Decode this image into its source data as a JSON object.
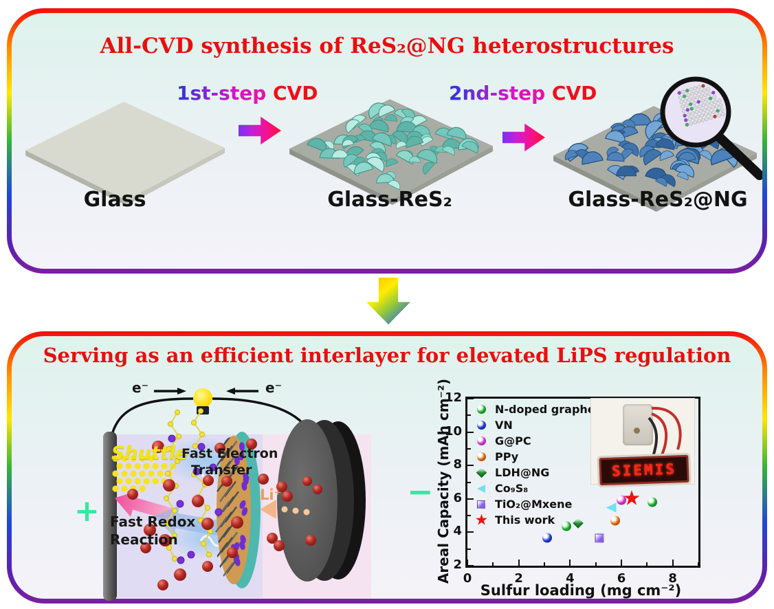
{
  "figure": {
    "top_panel": {
      "title": "All-CVD synthesis of ReS₂@NG heterostructures",
      "step1": {
        "name": "1st-step",
        "method": "CVD"
      },
      "step2": {
        "name": "2nd-step",
        "method": "CVD"
      },
      "labels": {
        "glass": "Glass",
        "glass_res2": "Glass-ReS₂",
        "glass_res2_ng": "Glass-ReS₂@NG"
      }
    },
    "bottom_panel": {
      "title": "Serving as an efficient interlayer for elevated LiPS regulation",
      "battery": {
        "electron_left": "e⁻",
        "electron_right": "e⁻",
        "positive_terminal": "+",
        "negative_terminal": "−",
        "shuttle": "Shuttle",
        "fast_electron_line1": "Fast Electron",
        "fast_electron_line2": "Transfer",
        "fast_redox_line1": "Fast Redox",
        "fast_redox_line2": "Reaction",
        "lithium_ion": "Li⁺"
      },
      "inset_photo": {
        "display_text": "SIEMIS"
      }
    }
  },
  "chart_data": {
    "type": "scatter",
    "title": "",
    "xlabel": "Sulfur loading (mg cm⁻²)",
    "ylabel": "Areal Capacity (mAh cm⁻²)",
    "xlim": [
      0,
      9
    ],
    "ylim": [
      2,
      12
    ],
    "xticks": [
      0,
      2,
      4,
      6,
      8
    ],
    "yticks": [
      2,
      4,
      6,
      8,
      10,
      12
    ],
    "grid": false,
    "legend_position": "upper-left",
    "series": [
      {
        "name": "N-doped graphene",
        "marker": "circle",
        "color": "#22c832",
        "points": [
          [
            3.85,
            4.3
          ],
          [
            7.2,
            5.75
          ]
        ]
      },
      {
        "name": "VN",
        "marker": "circle",
        "color": "#2244ee",
        "points": [
          [
            3.1,
            3.6
          ]
        ]
      },
      {
        "name": "G@PC",
        "marker": "circle",
        "color": "#ee44ee",
        "points": [
          [
            6.0,
            5.85
          ]
        ]
      },
      {
        "name": "PPy",
        "marker": "circle",
        "color": "#ff7f19",
        "points": [
          [
            5.75,
            4.65
          ]
        ]
      },
      {
        "name": "LDH@NG",
        "marker": "diamond",
        "color": "#1e8f2e",
        "points": [
          [
            4.3,
            4.55
          ]
        ]
      },
      {
        "name": "Co₉S₈",
        "marker": "triangle-left",
        "color": "#6fe3ef",
        "points": [
          [
            5.6,
            5.4
          ]
        ]
      },
      {
        "name": "TiO₂@Mxene",
        "marker": "square",
        "color": "#8a5cf0",
        "points": [
          [
            5.15,
            3.6
          ]
        ]
      },
      {
        "name": "This work",
        "marker": "star",
        "color": "#ee1111",
        "points": [
          [
            6.4,
            6.05
          ]
        ]
      }
    ]
  },
  "colors": {
    "title_red": "#e80f0f",
    "cvd_red": "#ee1119",
    "shuttle_yellow": "#f2e318",
    "lithium_orange": "#ef9b55",
    "terminal_green": "#35e8a1"
  }
}
